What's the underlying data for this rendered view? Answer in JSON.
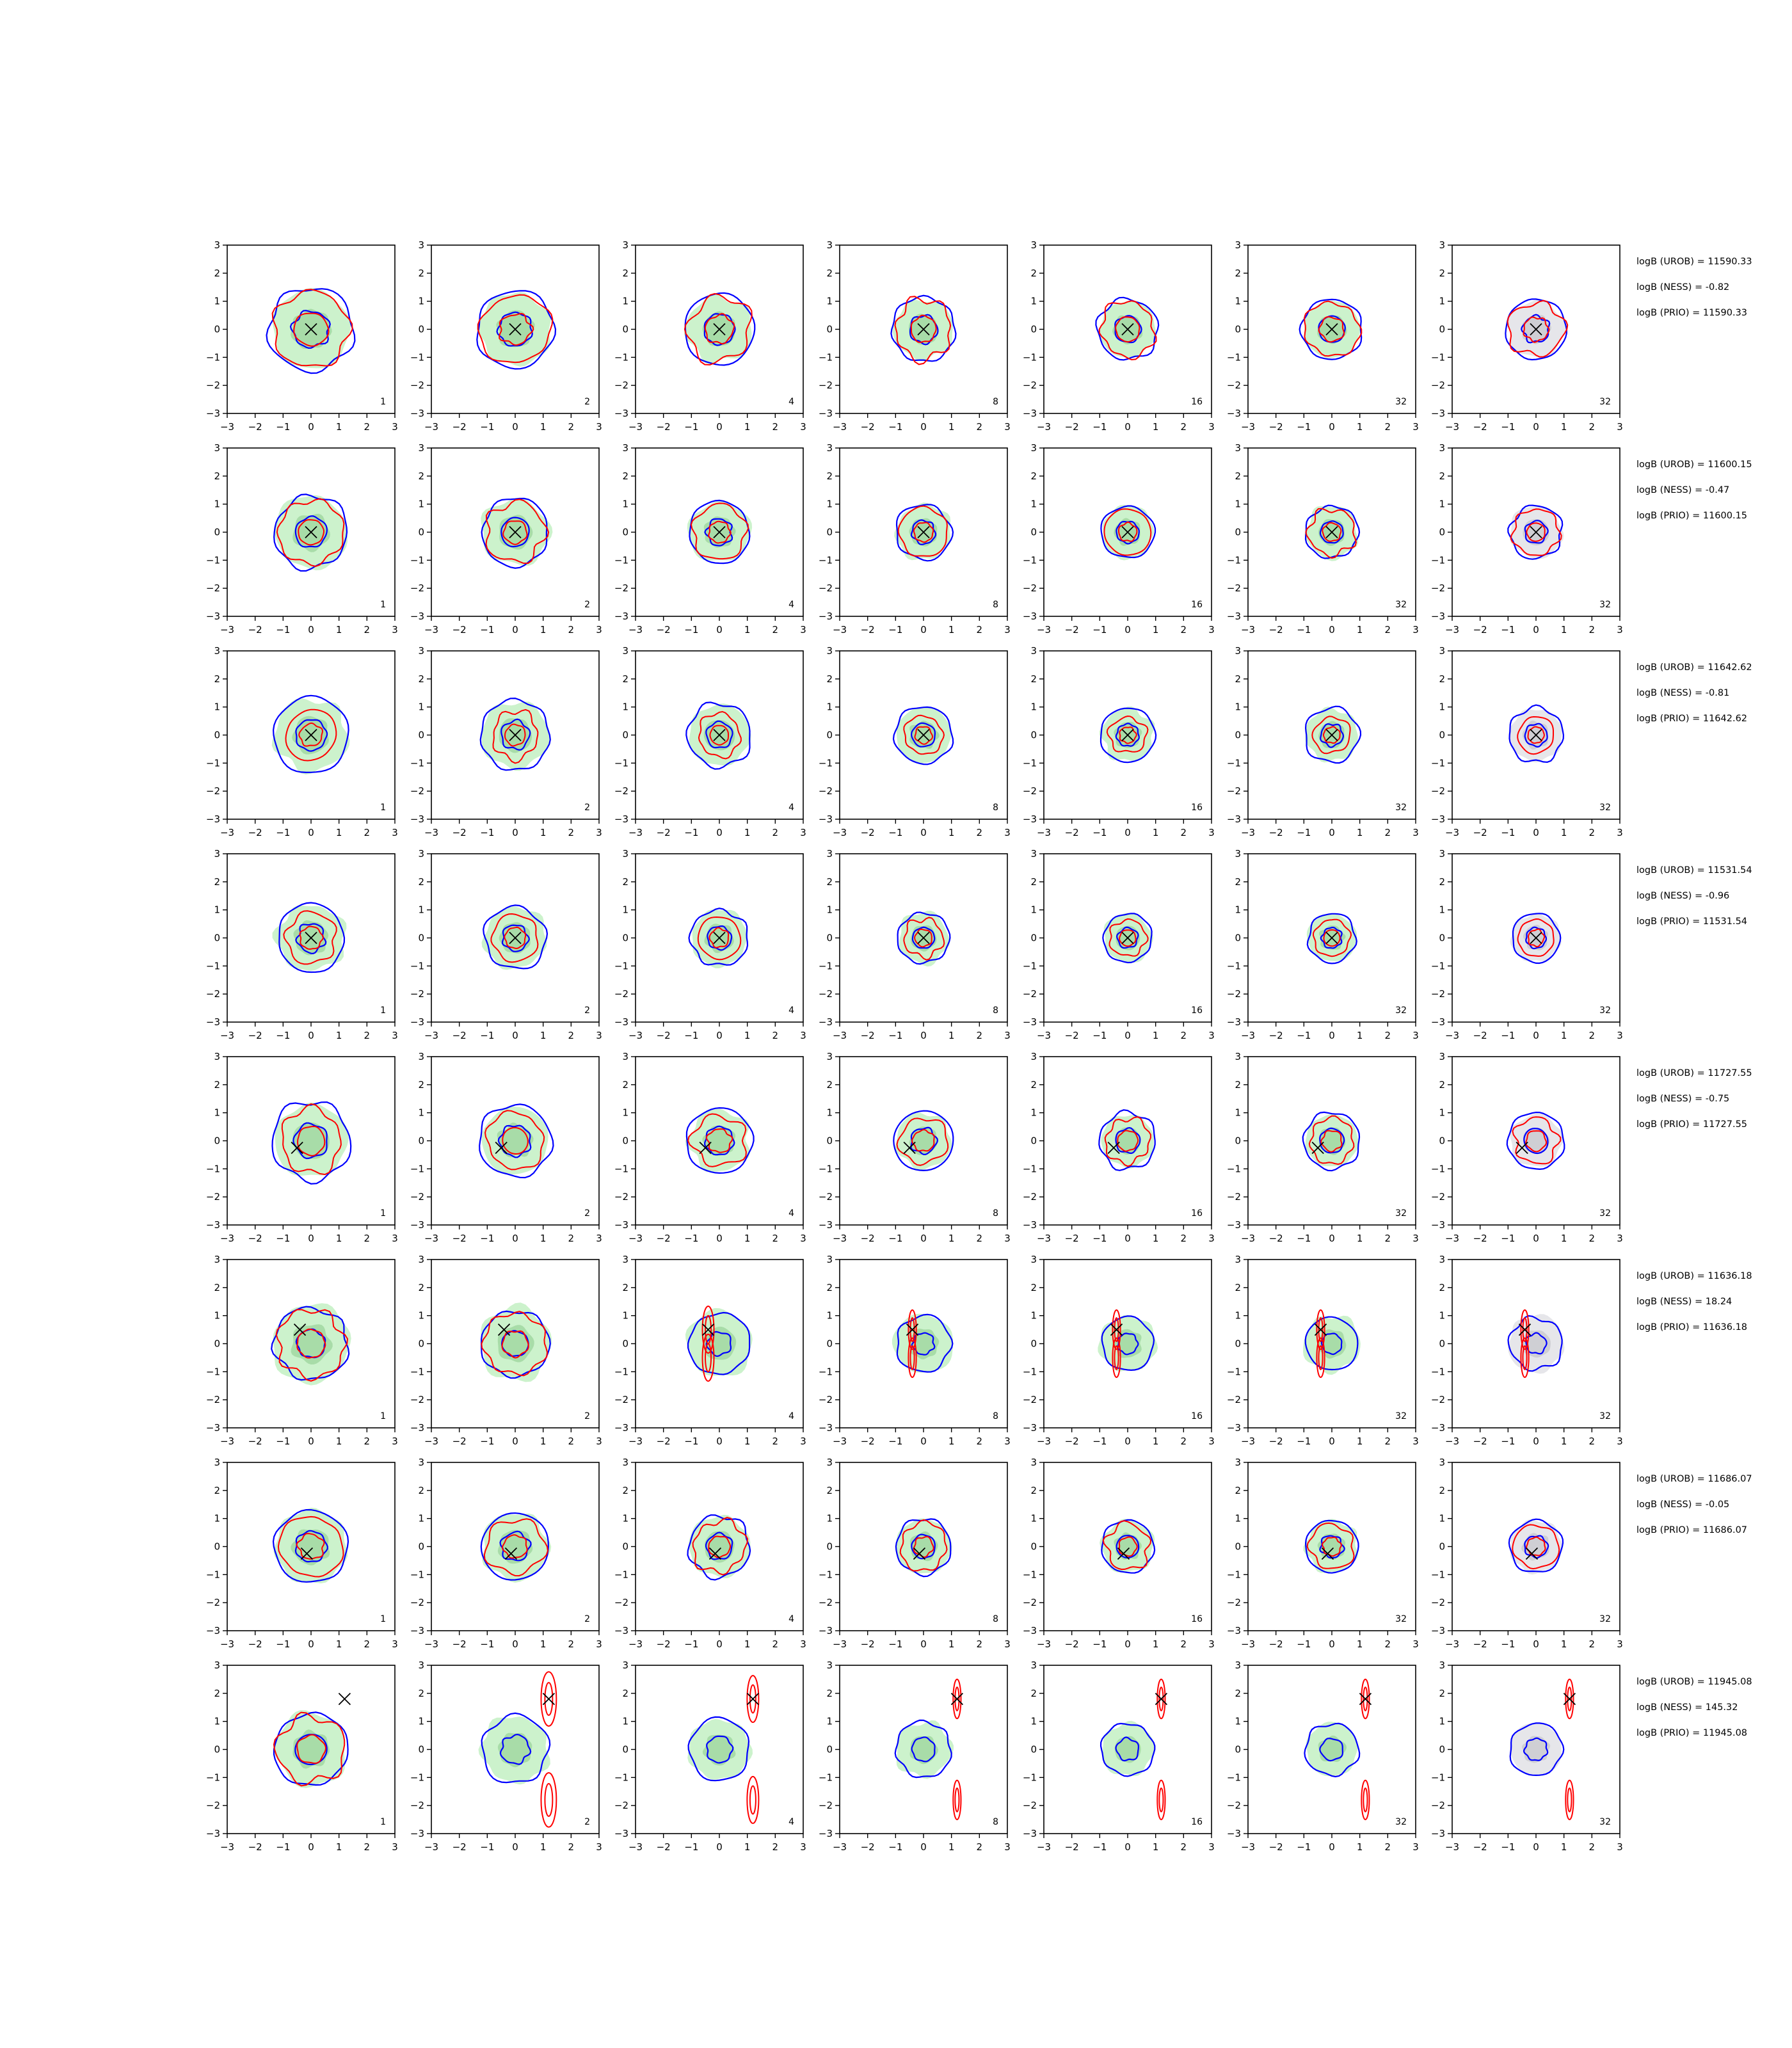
{
  "figure": {
    "background": "#ffffff"
  },
  "colors": {
    "level_fill_outer": "#ccf2cc",
    "level_fill_inner": "#a8dca8",
    "level_fill_core": "#93c793",
    "prior_fill_outer": "#e6e6ea",
    "prior_fill_inner": "#cfcfd4",
    "blue_contour": "#0000ff",
    "red_contour": "#ff0000",
    "marker": "#000000"
  },
  "chart_data": {
    "type": "contour-grid",
    "rows": 8,
    "cols": 7,
    "xlim": [
      -3,
      3
    ],
    "ylim": [
      -3,
      3
    ],
    "xticks": [
      "−3",
      "−2",
      "−1",
      "0",
      "1",
      "2",
      "3"
    ],
    "yticks": [
      "3",
      "2",
      "1",
      "0",
      "−1",
      "−2",
      "−3"
    ],
    "column_annotations": [
      "1",
      "2",
      "4",
      "8",
      "16",
      "32",
      "32"
    ],
    "marker_symbol": "×",
    "panels": [
      {
        "row": 0,
        "marker": [
          0,
          0
        ],
        "green_radius": 1.4,
        "blue_radii": [
          1.5,
          0.65
        ],
        "red_radii": [
          1.35,
          0.6
        ],
        "red_noise": 0.1
      },
      {
        "row": 1,
        "marker": [
          0,
          0
        ],
        "green_radius": 1.3,
        "blue_radii": [
          1.3,
          0.55
        ],
        "red_radii": [
          1.15,
          0.45
        ],
        "red_noise": 0.08
      },
      {
        "row": 2,
        "marker": [
          0,
          0
        ],
        "green_radius": 1.3,
        "blue_radii": [
          1.35,
          0.55
        ],
        "red_radii": [
          0.9,
          0.4
        ],
        "red_noise": 0.08
      },
      {
        "row": 3,
        "marker": [
          0,
          0
        ],
        "green_radius": 1.2,
        "blue_radii": [
          1.2,
          0.5
        ],
        "red_radii": [
          0.9,
          0.4
        ],
        "red_noise": 0.08
      },
      {
        "row": 4,
        "marker": [
          -0.5,
          -0.25
        ],
        "green_radius": 1.3,
        "blue_radii": [
          1.4,
          0.6
        ],
        "red_radii": [
          1.1,
          0.5
        ],
        "red_noise": 0.1
      },
      {
        "row": 5,
        "marker": [
          -0.4,
          0.5
        ],
        "green_radius": 1.4,
        "blue_radii": [
          1.3,
          0.5
        ],
        "red_radii": [
          1.2,
          0.5
        ],
        "red_noise": 0.1
      },
      {
        "row": 6,
        "marker": [
          -0.15,
          -0.25
        ],
        "green_radius": 1.3,
        "blue_radii": [
          1.3,
          0.55
        ],
        "red_radii": [
          1.1,
          0.45
        ],
        "red_noise": 0.1
      },
      {
        "row": 7,
        "marker": [
          1.2,
          1.8
        ],
        "green_radius": 1.3,
        "blue_radii": [
          1.3,
          0.55
        ],
        "red_radii": [
          1.2,
          0.5
        ],
        "red_noise": 0.1
      }
    ],
    "row_stats": [
      {
        "urob": "logB (UROB) = 11590.33",
        "ness": "logB (NESS) = -0.82",
        "prio": "logB (PRIO) = 11590.33"
      },
      {
        "urob": "logB (UROB) = 11600.15",
        "ness": "logB (NESS) = -0.47",
        "prio": "logB (PRIO) = 11600.15"
      },
      {
        "urob": "logB (UROB) = 11642.62",
        "ness": "logB (NESS) = -0.81",
        "prio": "logB (PRIO) = 11642.62"
      },
      {
        "urob": "logB (UROB) = 11531.54",
        "ness": "logB (NESS) = -0.96",
        "prio": "logB (PRIO) = 11531.54"
      },
      {
        "urob": "logB (UROB) = 11727.55",
        "ness": "logB (NESS) = -0.75",
        "prio": "logB (PRIO) = 11727.55"
      },
      {
        "urob": "logB (UROB) = 11636.18",
        "ness": "logB (NESS) = 18.24",
        "prio": "logB (PRIO) = 11636.18"
      },
      {
        "urob": "logB (UROB) = 11686.07",
        "ness": "logB (NESS) = -0.05",
        "prio": "logB (PRIO) = 11686.07"
      },
      {
        "urob": "logB (UROB) = 11945.08",
        "ness": "logB (NESS) = 145.32",
        "prio": "logB (PRIO) = 11945.08"
      }
    ]
  }
}
